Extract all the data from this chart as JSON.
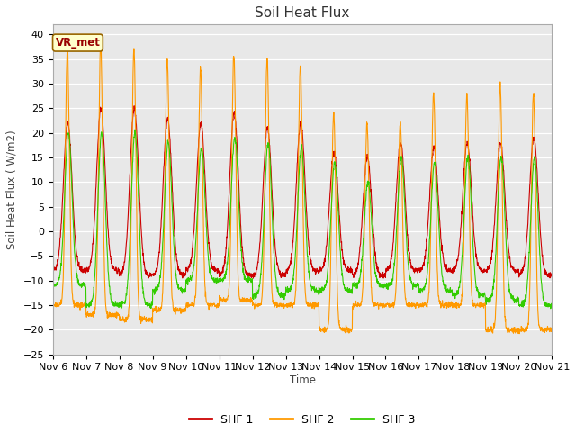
{
  "title": "Soil Heat Flux",
  "ylabel": "Soil Heat Flux ( W/m2)",
  "xlabel": "Time",
  "ylim": [
    -25,
    42
  ],
  "yticks": [
    -25,
    -20,
    -15,
    -10,
    -5,
    0,
    5,
    10,
    15,
    20,
    25,
    30,
    35,
    40
  ],
  "x_tick_labels": [
    "Nov 6",
    "Nov 7",
    "Nov 8",
    "Nov 9",
    "Nov 10",
    "Nov 11",
    "Nov 12",
    "Nov 13",
    "Nov 14",
    "Nov 15",
    "Nov 16",
    "Nov 17",
    "Nov 18",
    "Nov 19",
    "Nov 20",
    "Nov 21"
  ],
  "legend_labels": [
    "SHF 1",
    "SHF 2",
    "SHF 3"
  ],
  "legend_colors": [
    "#cc0000",
    "#ff9900",
    "#33cc00"
  ],
  "annotation_text": "VR_met",
  "annotation_color": "#990000",
  "annotation_bg": "#ffffcc",
  "fig_bg": "#ffffff",
  "plot_bg": "#e8e8e8",
  "grid_color": "#ffffff",
  "shf1_color": "#cc0000",
  "shf2_color": "#ff9900",
  "shf3_color": "#33cc00",
  "shf2_peaks": [
    37,
    38,
    37,
    35,
    33,
    36,
    35,
    34,
    24,
    22,
    22,
    28,
    28,
    30,
    28
  ],
  "shf1_peaks": [
    22,
    25,
    25,
    23,
    22,
    24,
    21,
    22,
    16,
    15,
    18,
    17,
    18,
    18,
    19
  ],
  "shf3_peaks": [
    20,
    20,
    20,
    18,
    17,
    19,
    18,
    17,
    14,
    10,
    15,
    14,
    15,
    15,
    15
  ],
  "shf2_nights": [
    -15,
    -17,
    -18,
    -16,
    -15,
    -14,
    -15,
    -15,
    -20,
    -15,
    -15,
    -15,
    -15,
    -20,
    -20
  ],
  "shf1_nights": [
    -8,
    -8,
    -9,
    -9,
    -8,
    -9,
    -9,
    -8,
    -8,
    -9,
    -8,
    -8,
    -8,
    -8,
    -9
  ],
  "shf3_nights": [
    -11,
    -15,
    -15,
    -12,
    -10,
    -10,
    -13,
    -12,
    -12,
    -11,
    -11,
    -12,
    -13,
    -14,
    -15
  ]
}
